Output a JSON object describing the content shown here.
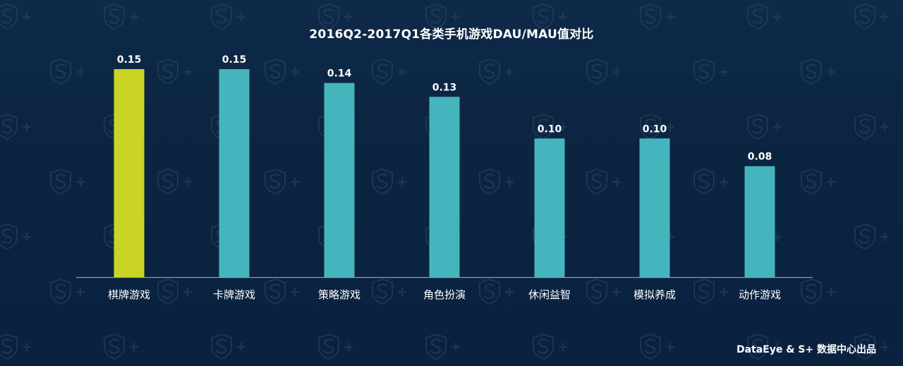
{
  "title": "2016Q2-2017Q1各类手机游戏DAU/MAU值对比",
  "footer": "DataEye & S+ 数据中心出品",
  "colors": {
    "background": "#0b2440",
    "highlight_bar": "#c9d424",
    "bar": "#45b5bd",
    "axis": "#8f9aa6",
    "text": "#ffffff",
    "watermark": "#2c4560"
  },
  "watermark_icon": "s-plus-shield-logo",
  "chart_data": {
    "type": "bar",
    "title": "2016Q2-2017Q1各类手机游戏DAU/MAU值对比",
    "xlabel": "",
    "ylabel": "",
    "categories": [
      "棋牌游戏",
      "卡牌游戏",
      "策略游戏",
      "角色扮演",
      "休闲益智",
      "模拟养成",
      "动作游戏"
    ],
    "values": [
      0.15,
      0.15,
      0.14,
      0.13,
      0.1,
      0.1,
      0.08
    ],
    "data_labels": [
      "0.15",
      "0.15",
      "0.14",
      "0.13",
      "0.10",
      "0.10",
      "0.08"
    ],
    "highlight_index": 0,
    "ylim": [
      0,
      0.15
    ],
    "grid": false,
    "legend": "none"
  }
}
